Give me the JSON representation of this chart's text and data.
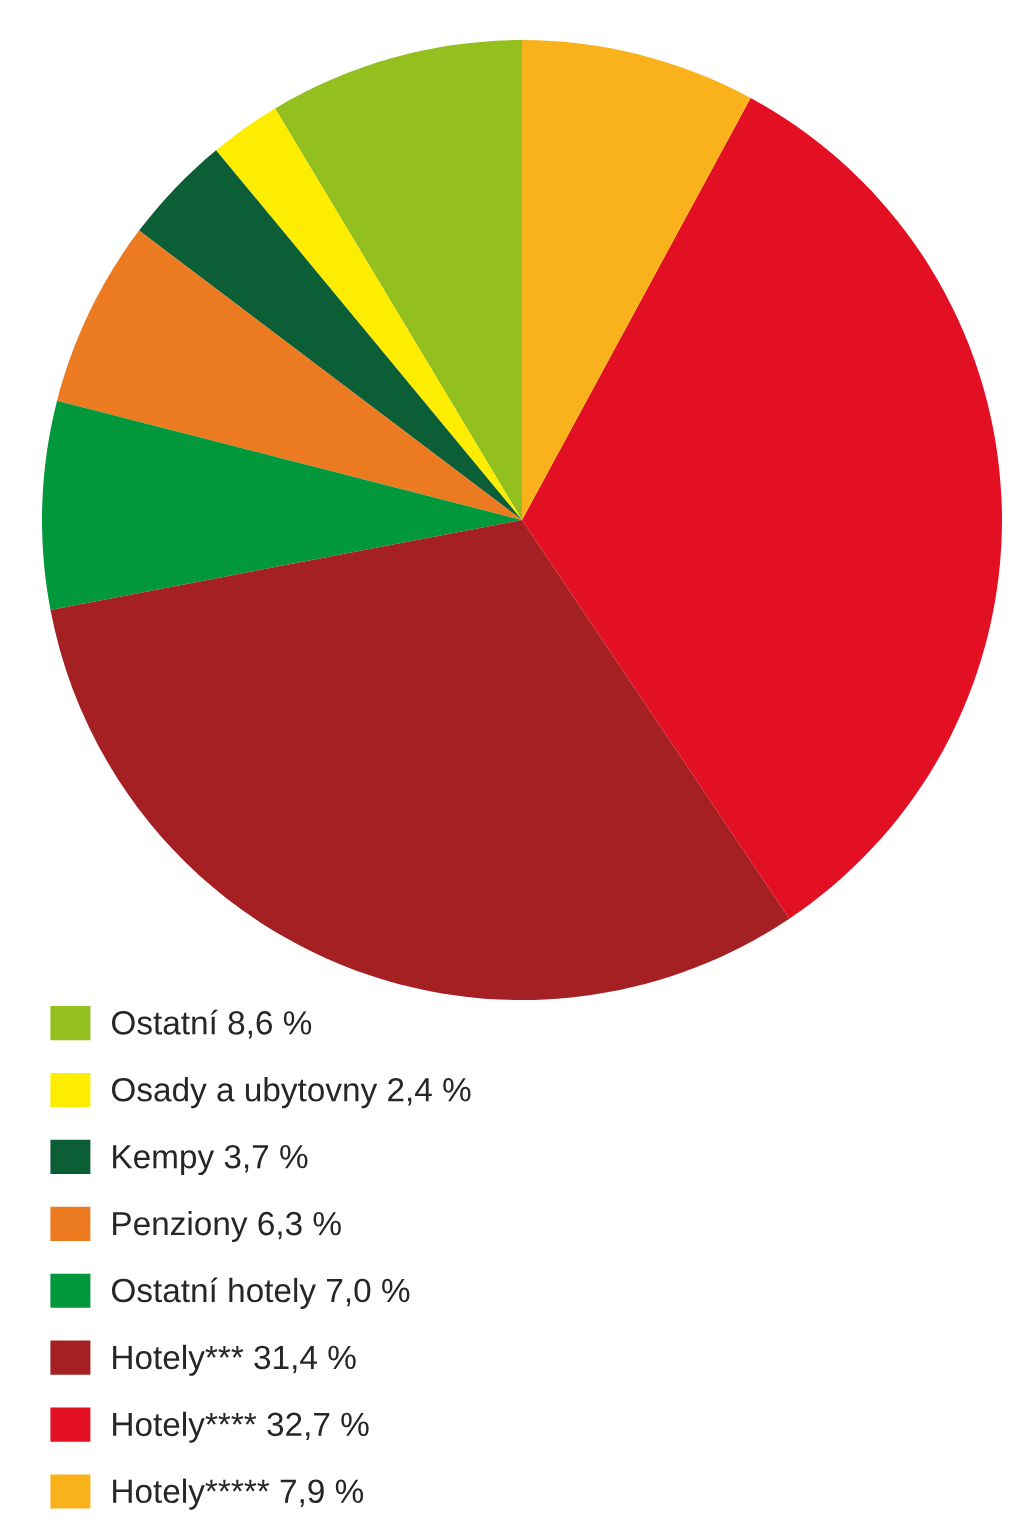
{
  "chart_data": {
    "type": "pie",
    "categories": [
      "Ostatní",
      "Osady a ubytovny",
      "Kempy",
      "Penziony",
      "Ostatní hotely",
      "Hotely***",
      "Hotely****",
      "Hotely*****"
    ],
    "values": [
      8.6,
      2.4,
      3.7,
      6.3,
      7.0,
      31.4,
      32.7,
      7.9
    ],
    "value_labels": [
      "8,6 %",
      "2,4 %",
      "3,7 %",
      "6,3 %",
      "7,0 %",
      "31,4 %",
      "32,7 %",
      "7,9 %"
    ],
    "colors": [
      "#93c01f",
      "#ffed00",
      "#0b5e36",
      "#ec7a20",
      "#00983a",
      "#a52023",
      "#e30f22",
      "#f9b21b"
    ],
    "legend": "bottom left"
  }
}
